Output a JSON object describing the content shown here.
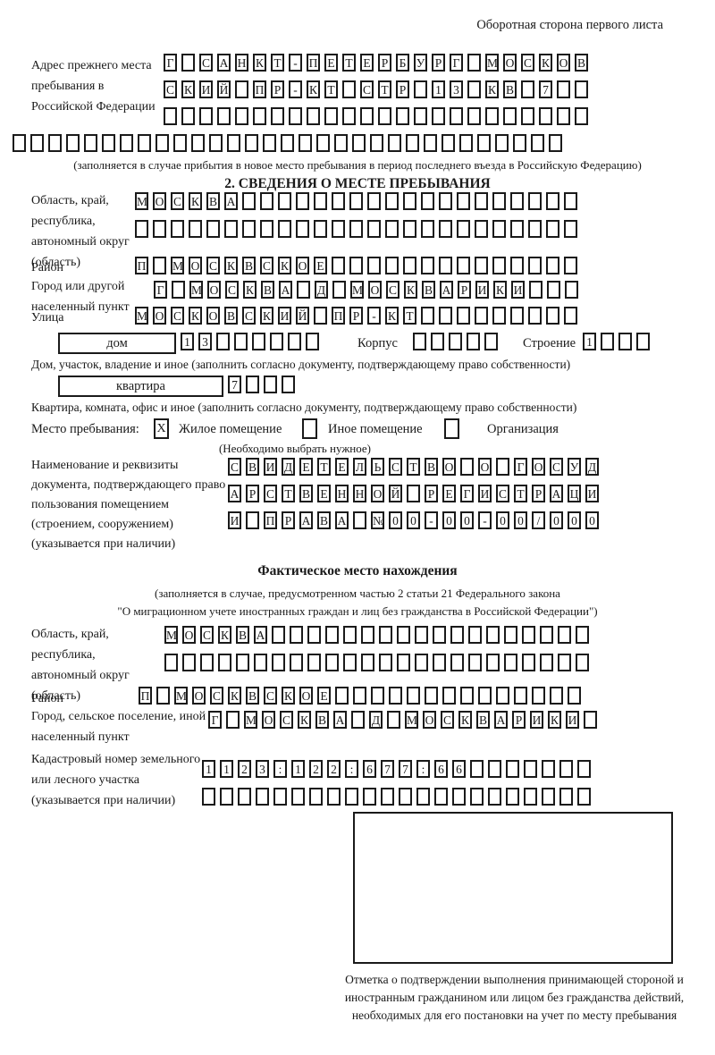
{
  "colors": {
    "ink": "#1a1a1a",
    "background": "#ffffff"
  },
  "page": {
    "header_note": "Оборотная сторона первого листа"
  },
  "prev_address": {
    "label": "Адрес прежнего места пребывания в Российской Федерации",
    "rows": [
      [
        "Г",
        "",
        "С",
        "А",
        "Н",
        "К",
        "Т",
        "-",
        "П",
        "Е",
        "Т",
        "Е",
        "Р",
        "Б",
        "У",
        "Р",
        "Г",
        "",
        "М",
        "О",
        "С",
        "К",
        "О",
        "В"
      ],
      [
        "С",
        "К",
        "И",
        "Й",
        "",
        "П",
        "Р",
        "-",
        "К",
        "Т",
        "",
        "С",
        "Т",
        "Р",
        "",
        "1",
        "3",
        "",
        "К",
        "В",
        "",
        "7",
        "",
        ""
      ],
      [
        "",
        "",
        "",
        "",
        "",
        "",
        "",
        "",
        "",
        "",
        "",
        "",
        "",
        "",
        "",
        "",
        "",
        "",
        "",
        "",
        "",
        "",
        "",
        ""
      ]
    ],
    "row_full": [
      "",
      "",
      "",
      "",
      "",
      "",
      "",
      "",
      "",
      "",
      "",
      "",
      "",
      "",
      "",
      "",
      "",
      "",
      "",
      "",
      "",
      "",
      "",
      "",
      "",
      "",
      "",
      "",
      "",
      "",
      ""
    ],
    "note": "(заполняется в случае прибытия в новое место пребывания в период последнего въезда в Российскую Федерацию)"
  },
  "section2": {
    "title": "2. СВЕДЕНИЯ О МЕСТЕ ПРЕБЫВАНИЯ",
    "region": {
      "label": "Область, край, республика, автономный округ (область)",
      "rows": [
        [
          "М",
          "О",
          "С",
          "К",
          "В",
          "А",
          "",
          "",
          "",
          "",
          "",
          "",
          "",
          "",
          "",
          "",
          "",
          "",
          "",
          "",
          "",
          "",
          "",
          "",
          ""
        ],
        [
          "",
          "",
          "",
          "",
          "",
          "",
          "",
          "",
          "",
          "",
          "",
          "",
          "",
          "",
          "",
          "",
          "",
          "",
          "",
          "",
          "",
          "",
          "",
          "",
          ""
        ]
      ]
    },
    "district": {
      "label": "Район",
      "row": [
        "П",
        "",
        "М",
        "О",
        "С",
        "К",
        "В",
        "С",
        "К",
        "О",
        "Е",
        "",
        "",
        "",
        "",
        "",
        "",
        "",
        "",
        "",
        "",
        "",
        "",
        "",
        ""
      ]
    },
    "city": {
      "label": "Город или другой населенный пункт",
      "row": [
        "Г",
        "",
        "М",
        "О",
        "С",
        "К",
        "В",
        "А",
        "",
        "Д",
        "",
        "М",
        "О",
        "С",
        "К",
        "В",
        "А",
        "Р",
        "И",
        "К",
        "И",
        "",
        "",
        ""
      ]
    },
    "street": {
      "label": "Улица",
      "row": [
        "М",
        "О",
        "С",
        "К",
        "О",
        "В",
        "С",
        "К",
        "И",
        "Й",
        "",
        "П",
        "Р",
        "-",
        "К",
        "Т",
        "",
        "",
        "",
        "",
        "",
        "",
        "",
        "",
        ""
      ]
    },
    "house": {
      "type_label": "дом",
      "number": [
        "1",
        "3",
        "",
        "",
        "",
        "",
        "",
        ""
      ],
      "korpus_label": "Корпус",
      "korpus": [
        "",
        "",
        "",
        "",
        ""
      ],
      "stroenie_label": "Строение",
      "stroenie": [
        "1",
        "",
        "",
        ""
      ]
    },
    "house_note": "Дом, участок, владение и иное (заполнить согласно документу, подтверждающему право собственности)",
    "apartment": {
      "type_label": "квартира",
      "number": [
        "7",
        "",
        "",
        ""
      ]
    },
    "apartment_note": "Квартира, комната, офис и иное (заполнить согласно документу, подтверждающему право собственности)",
    "stay": {
      "label": "Место пребывания:",
      "options": [
        {
          "label": "Жилое помещение",
          "mark": "X"
        },
        {
          "label": "Иное помещение",
          "mark": ""
        },
        {
          "label": "Организация",
          "mark": ""
        }
      ],
      "note": "(Необходимо выбрать нужное)"
    },
    "document": {
      "label": "Наименование и реквизиты документа, подтверждающего право пользования помещением (строением, сооружением) (указывается при наличии)",
      "rows": [
        [
          "С",
          "В",
          "И",
          "Д",
          "Е",
          "Т",
          "Е",
          "Л",
          "Ь",
          "С",
          "Т",
          "В",
          "О",
          "",
          "О",
          "",
          "Г",
          "О",
          "С",
          "У",
          "Д"
        ],
        [
          "А",
          "Р",
          "С",
          "Т",
          "В",
          "Е",
          "Н",
          "Н",
          "О",
          "Й",
          "",
          "Р",
          "Е",
          "Г",
          "И",
          "С",
          "Т",
          "Р",
          "А",
          "Ц",
          "И"
        ],
        [
          "И",
          "",
          "П",
          "Р",
          "А",
          "В",
          "А",
          "",
          "№",
          "0",
          "0",
          "-",
          "0",
          "0",
          "-",
          "0",
          "0",
          "/",
          "0",
          "0",
          "0"
        ]
      ]
    }
  },
  "actual": {
    "title": "Фактическое место нахождения",
    "note1": "(заполняется в случае, предусмотренном частью 2 статьи 21 Федерального закона",
    "note2": "\"О миграционном учете иностранных граждан и лиц без гражданства в Российской Федерации\")",
    "region": {
      "label": "Область, край, республика, автономный округ (область)",
      "rows": [
        [
          "М",
          "О",
          "С",
          "К",
          "В",
          "А",
          "",
          "",
          "",
          "",
          "",
          "",
          "",
          "",
          "",
          "",
          "",
          "",
          "",
          "",
          "",
          "",
          "",
          ""
        ],
        [
          "",
          "",
          "",
          "",
          "",
          "",
          "",
          "",
          "",
          "",
          "",
          "",
          "",
          "",
          "",
          "",
          "",
          "",
          "",
          "",
          "",
          "",
          "",
          ""
        ]
      ]
    },
    "district": {
      "label": "Район",
      "row": [
        "П",
        "",
        "М",
        "О",
        "С",
        "К",
        "В",
        "С",
        "К",
        "О",
        "Е",
        "",
        "",
        "",
        "",
        "",
        "",
        "",
        "",
        "",
        "",
        "",
        "",
        "",
        ""
      ]
    },
    "city": {
      "label": "Город, сельское поселение, иной населенный пункт",
      "row": [
        "Г",
        "",
        "М",
        "О",
        "С",
        "К",
        "В",
        "А",
        "",
        "Д",
        "",
        "М",
        "О",
        "С",
        "К",
        "В",
        "А",
        "Р",
        "И",
        "К",
        "И",
        ""
      ]
    },
    "cadastral": {
      "label": "Кадастровый номер земельного или лесного участка (указывается при наличии)",
      "rows": [
        [
          "1",
          "1",
          "2",
          "3",
          ":",
          "1",
          "2",
          "2",
          ":",
          "6",
          "7",
          "7",
          ":",
          "6",
          "6",
          "",
          "",
          "",
          "",
          "",
          "",
          ""
        ],
        [
          "",
          "",
          "",
          "",
          "",
          "",
          "",
          "",
          "",
          "",
          "",
          "",
          "",
          "",
          "",
          "",
          "",
          "",
          "",
          "",
          "",
          ""
        ]
      ]
    },
    "stamp_caption": "Отметка о подтверждении выполнения принимающей стороной и иностранным гражданином или лицом без гражданства действий, необходимых для его постановки на учет по месту пребывания"
  }
}
